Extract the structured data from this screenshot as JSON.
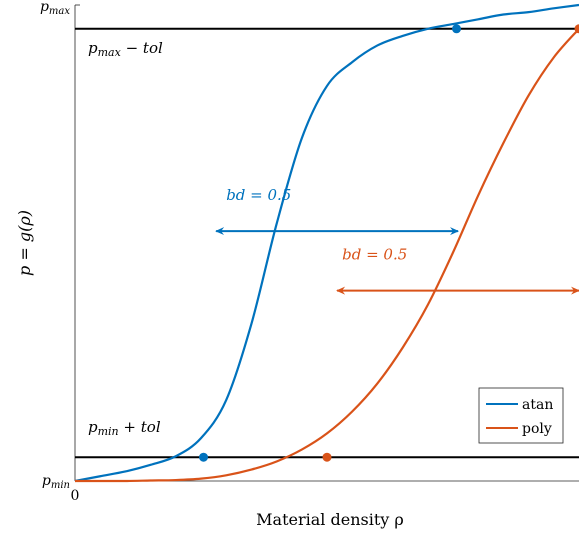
{
  "chart_data": {
    "type": "line",
    "title": "",
    "xlabel": "Material density ρ",
    "ylabel": "p = g(ρ)",
    "xlim": [
      0,
      1
    ],
    "ylim": [
      0,
      1
    ],
    "x_ticks": [
      {
        "value": 0,
        "label": "0"
      }
    ],
    "y_ticks": [
      {
        "value": 0,
        "label": "p",
        "sub": "min"
      },
      {
        "value": 1,
        "label": "p",
        "sub": "max"
      }
    ],
    "tol": 0.05,
    "series": [
      {
        "name": "atan",
        "color": "#0072BD",
        "x": [
          0,
          0.05,
          0.1,
          0.15,
          0.2,
          0.25,
          0.3,
          0.35,
          0.4,
          0.45,
          0.5,
          0.55,
          0.6,
          0.65,
          0.7,
          0.75,
          0.8,
          0.85,
          0.9,
          0.95,
          1.0
        ],
        "y": [
          0,
          0.01,
          0.02,
          0.034,
          0.052,
          0.09,
          0.17,
          0.33,
          0.54,
          0.72,
          0.83,
          0.88,
          0.915,
          0.935,
          0.95,
          0.96,
          0.97,
          0.98,
          0.985,
          0.993,
          1.0
        ],
        "markers": [
          {
            "x": 0.255,
            "y": 0.05
          },
          {
            "x": 0.757,
            "y": 0.95
          }
        ]
      },
      {
        "name": "poly",
        "color": "#D95319",
        "x": [
          0,
          0.05,
          0.1,
          0.15,
          0.2,
          0.25,
          0.3,
          0.35,
          0.4,
          0.45,
          0.5,
          0.55,
          0.6,
          0.65,
          0.7,
          0.75,
          0.8,
          0.85,
          0.9,
          0.95,
          1.0
        ],
        "y": [
          0,
          0,
          0,
          0.001,
          0.002,
          0.005,
          0.012,
          0.024,
          0.041,
          0.066,
          0.1,
          0.146,
          0.205,
          0.28,
          0.37,
          0.48,
          0.6,
          0.71,
          0.81,
          0.89,
          0.95
        ],
        "markers": [
          {
            "x": 0.5,
            "y": 0.05
          },
          {
            "x": 1.0,
            "y": 0.95
          }
        ]
      }
    ],
    "reference_lines": [
      {
        "y": 0.95,
        "label": "p",
        "sub": "max",
        "suffix": " − tol"
      },
      {
        "y": 0.05,
        "label": "p",
        "sub": "min",
        "suffix": " + tol"
      }
    ],
    "annotations": [
      {
        "text": "bd = 0.5",
        "color": "#0072BD",
        "arrow_from": 0.28,
        "arrow_to": 0.76,
        "arrow_y": 0.525,
        "text_x": 0.3,
        "text_y": 0.59
      },
      {
        "text": "bd = 0.5",
        "color": "#D95319",
        "arrow_from": 0.52,
        "arrow_to": 1.0,
        "arrow_y": 0.4,
        "text_x": 0.53,
        "text_y": 0.465
      }
    ],
    "legend": {
      "placement": "bottom-right",
      "entries": [
        "atan",
        "poly"
      ]
    },
    "grid": false
  }
}
